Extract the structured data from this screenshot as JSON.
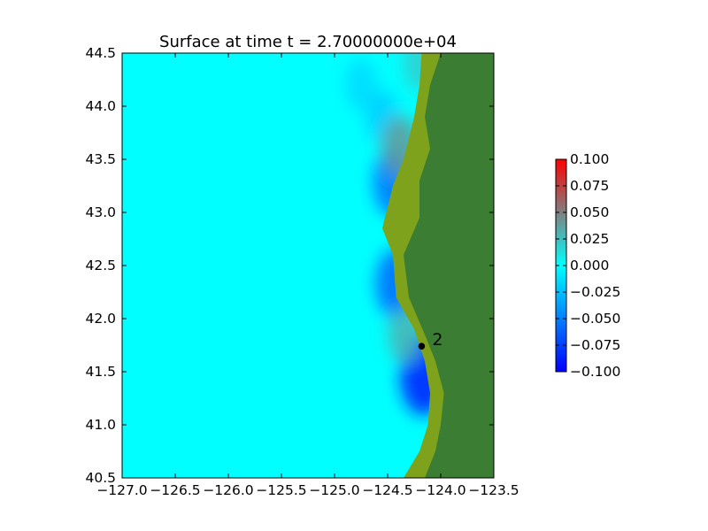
{
  "chart_data": {
    "type": "heatmap",
    "title": "Surface at time t = 2.70000000e+04",
    "xlabel": "",
    "ylabel": "",
    "xlim": [
      -127.0,
      -123.5
    ],
    "ylim": [
      40.5,
      44.5
    ],
    "x_ticks": [
      -127.0,
      -126.5,
      -126.0,
      -125.5,
      -125.0,
      -124.5,
      -124.0,
      -123.5
    ],
    "x_tick_labels": [
      "−127.0",
      "−126.5",
      "−126.0",
      "−125.5",
      "−125.0",
      "−124.5",
      "−124.0",
      "−123.5"
    ],
    "y_ticks": [
      40.5,
      41.0,
      41.5,
      42.0,
      42.5,
      43.0,
      43.5,
      44.0,
      44.5
    ],
    "y_tick_labels": [
      "40.5",
      "41.0",
      "41.5",
      "42.0",
      "42.5",
      "43.0",
      "43.5",
      "44.0",
      "44.5"
    ],
    "grid": false,
    "colorbar": {
      "min": -0.1,
      "max": 0.1,
      "ticks": [
        -0.1,
        -0.075,
        -0.05,
        -0.025,
        0.0,
        0.025,
        0.05,
        0.075,
        0.1
      ],
      "tick_labels": [
        "−0.100",
        "−0.075",
        "−0.050",
        "−0.025",
        "0.000",
        "0.025",
        "0.050",
        "0.075",
        "0.100"
      ],
      "colors": [
        "#0000ff",
        "#00ffff",
        "#808080",
        "#ff0000"
      ]
    },
    "colors": {
      "ocean": "#00ffff",
      "land": "#3a7d33",
      "coastal_lowland": "#7fa21c"
    },
    "coastline": [
      [
        -124.18,
        44.5
      ],
      [
        -124.2,
        44.2
      ],
      [
        -124.25,
        43.9
      ],
      [
        -124.35,
        43.5
      ],
      [
        -124.45,
        43.25
      ],
      [
        -124.55,
        42.85
      ],
      [
        -124.45,
        42.6
      ],
      [
        -124.42,
        42.2
      ],
      [
        -124.25,
        41.9
      ],
      [
        -124.15,
        41.6
      ],
      [
        -124.1,
        41.3
      ],
      [
        -124.12,
        41.0
      ],
      [
        -124.2,
        40.75
      ],
      [
        -124.35,
        40.5
      ]
    ],
    "lowland_edge": [
      [
        -124.0,
        44.5
      ],
      [
        -124.1,
        44.2
      ],
      [
        -124.15,
        43.9
      ],
      [
        -124.1,
        43.6
      ],
      [
        -124.2,
        43.3
      ],
      [
        -124.2,
        42.95
      ],
      [
        -124.35,
        42.6
      ],
      [
        -124.3,
        42.2
      ],
      [
        -124.15,
        41.85
      ],
      [
        -124.05,
        41.6
      ],
      [
        -123.97,
        41.3
      ],
      [
        -124.0,
        41.0
      ],
      [
        -124.05,
        40.75
      ],
      [
        -124.15,
        40.5
      ]
    ],
    "wave_anomalies": [
      {
        "lon": -124.16,
        "lat": 41.47,
        "value": -0.09
      },
      {
        "lon": -124.42,
        "lat": 42.33,
        "value": -0.06
      },
      {
        "lon": -124.45,
        "lat": 43.28,
        "value": -0.055
      },
      {
        "lon": -124.55,
        "lat": 43.9,
        "value": -0.02
      },
      {
        "lon": -124.38,
        "lat": 43.62,
        "value": 0.04
      },
      {
        "lon": -124.33,
        "lat": 41.85,
        "value": 0.03
      },
      {
        "lon": -124.75,
        "lat": 44.2,
        "value": -0.015
      },
      {
        "lon": -124.2,
        "lat": 44.4,
        "value": 0.02
      }
    ],
    "stations": [
      {
        "label": "2",
        "lon": -124.18,
        "lat": 41.74
      }
    ]
  }
}
